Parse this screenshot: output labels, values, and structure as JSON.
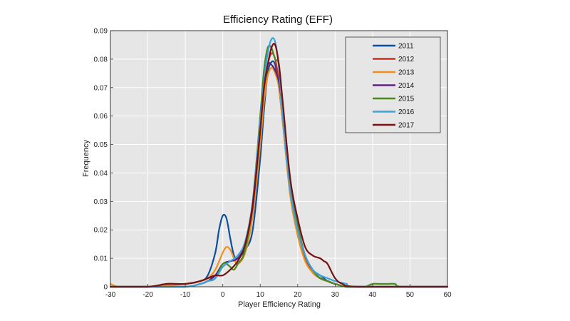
{
  "chart_data": {
    "type": "line",
    "title": "Efficiency Rating (EFF)",
    "xlabel": "Player Efficiency Rating",
    "ylabel": "Frequency",
    "xlim": [
      -30,
      60
    ],
    "ylim": [
      0,
      0.09
    ],
    "x_ticks": [
      "-30",
      "-20",
      "-10",
      "0",
      "10",
      "20",
      "30",
      "40",
      "50",
      "60"
    ],
    "y_ticks": [
      "0",
      "0.01",
      "0.02",
      "0.03",
      "0.04",
      "0.05",
      "0.06",
      "0.07",
      "0.08",
      "0.09"
    ],
    "grid": true,
    "legend_position": "top-right",
    "series": [
      {
        "name": "2011",
        "color": "#0b4f9e",
        "x": [
          -30,
          -20,
          -10,
          -6,
          -4,
          -2,
          -1,
          0,
          1,
          2,
          3,
          4,
          6,
          8,
          10,
          11,
          12,
          13,
          14,
          15,
          16,
          18,
          20,
          22,
          24,
          26,
          28,
          30,
          33,
          36,
          60
        ],
        "y": [
          0,
          0,
          0.001,
          0.002,
          0.004,
          0.012,
          0.02,
          0.025,
          0.024,
          0.017,
          0.011,
          0.01,
          0.013,
          0.02,
          0.045,
          0.062,
          0.075,
          0.079,
          0.078,
          0.07,
          0.058,
          0.033,
          0.02,
          0.011,
          0.006,
          0.004,
          0.002,
          0.001,
          0,
          0,
          0
        ]
      },
      {
        "name": "2012",
        "color": "#c8301e",
        "x": [
          -30,
          -20,
          -15,
          -13,
          -10,
          -6,
          -4,
          -2,
          0,
          2,
          4,
          6,
          8,
          10,
          11,
          12,
          13,
          14,
          15,
          16,
          18,
          20,
          22,
          24,
          26,
          28,
          30,
          33,
          36,
          60
        ],
        "y": [
          0,
          0,
          0.001,
          0.001,
          0.001,
          0.002,
          0.003,
          0.004,
          0.008,
          0.009,
          0.01,
          0.015,
          0.028,
          0.055,
          0.069,
          0.078,
          0.082,
          0.08,
          0.072,
          0.06,
          0.033,
          0.02,
          0.01,
          0.005,
          0.003,
          0.002,
          0.001,
          0,
          0,
          0
        ]
      },
      {
        "name": "2013",
        "color": "#f28e1c",
        "x": [
          -30,
          -28,
          -25,
          -20,
          -10,
          -6,
          -4,
          -2,
          0,
          1,
          2,
          3,
          4,
          6,
          8,
          10,
          11,
          12,
          13,
          14,
          15,
          16,
          18,
          20,
          22,
          24,
          26,
          28,
          30,
          33,
          36,
          60
        ],
        "y": [
          0.001,
          0,
          0,
          0,
          0.001,
          0.002,
          0.003,
          0.006,
          0.012,
          0.014,
          0.013,
          0.01,
          0.008,
          0.012,
          0.025,
          0.05,
          0.065,
          0.074,
          0.077,
          0.075,
          0.07,
          0.058,
          0.032,
          0.018,
          0.009,
          0.005,
          0.003,
          0.002,
          0.001,
          0,
          0,
          0
        ]
      },
      {
        "name": "2014",
        "color": "#5b2380",
        "x": [
          -30,
          -20,
          -10,
          -6,
          -4,
          -2,
          0,
          2,
          4,
          6,
          8,
          10,
          11,
          12,
          13,
          14,
          15,
          16,
          18,
          20,
          22,
          24,
          26,
          28,
          30,
          33,
          36,
          60
        ],
        "y": [
          0,
          0,
          0,
          0.001,
          0.002,
          0.004,
          0.008,
          0.009,
          0.01,
          0.015,
          0.028,
          0.055,
          0.07,
          0.078,
          0.078,
          0.076,
          0.072,
          0.062,
          0.036,
          0.021,
          0.011,
          0.006,
          0.003,
          0.002,
          0.001,
          0,
          0,
          0
        ]
      },
      {
        "name": "2015",
        "color": "#4a8a1c",
        "x": [
          -30,
          -20,
          -10,
          -6,
          -4,
          -2,
          0,
          1,
          2,
          3,
          4,
          6,
          8,
          10,
          11,
          12,
          13,
          14,
          15,
          16,
          18,
          20,
          22,
          24,
          26,
          28,
          30,
          33,
          36,
          38,
          40,
          42,
          44,
          46,
          48,
          60
        ],
        "y": [
          0,
          0,
          0,
          0.001,
          0.002,
          0.003,
          0.008,
          0.008,
          0.007,
          0.006,
          0.008,
          0.013,
          0.03,
          0.06,
          0.076,
          0.084,
          0.084,
          0.08,
          0.078,
          0.064,
          0.038,
          0.022,
          0.011,
          0.006,
          0.003,
          0.002,
          0.001,
          0,
          0,
          0,
          0.001,
          0.001,
          0.001,
          0.001,
          0,
          0
        ]
      },
      {
        "name": "2016",
        "color": "#35a4e0",
        "x": [
          -30,
          -20,
          -10,
          -6,
          -4,
          -2,
          0,
          2,
          4,
          6,
          8,
          10,
          11,
          12,
          13,
          14,
          15,
          16,
          18,
          20,
          22,
          24,
          26,
          28,
          30,
          33,
          36,
          60
        ],
        "y": [
          0,
          0,
          0,
          0.001,
          0.002,
          0.003,
          0.007,
          0.009,
          0.011,
          0.016,
          0.03,
          0.058,
          0.072,
          0.082,
          0.087,
          0.086,
          0.077,
          0.06,
          0.034,
          0.02,
          0.011,
          0.006,
          0.004,
          0.003,
          0.002,
          0.001,
          0,
          0
        ]
      },
      {
        "name": "2017",
        "color": "#7a0f12",
        "x": [
          -30,
          -20,
          -15,
          -10,
          -6,
          -4,
          -2,
          0,
          2,
          4,
          6,
          8,
          10,
          11,
          12,
          13,
          14,
          15,
          16,
          18,
          20,
          22,
          24,
          26,
          27,
          28,
          30,
          32,
          36,
          60
        ],
        "y": [
          0,
          0,
          0.001,
          0.001,
          0.002,
          0.003,
          0.004,
          0.004,
          0.006,
          0.009,
          0.015,
          0.029,
          0.055,
          0.07,
          0.078,
          0.084,
          0.085,
          0.078,
          0.065,
          0.038,
          0.024,
          0.014,
          0.011,
          0.01,
          0.009,
          0.008,
          0.003,
          0.001,
          0,
          0
        ]
      }
    ]
  }
}
